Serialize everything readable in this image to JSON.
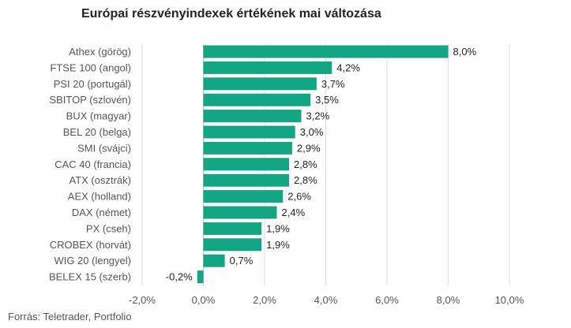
{
  "title": "Európai részvényindexek értékének mai változása",
  "source": "Forrás: Teletrader, Portfolio",
  "colors": {
    "bar": "#13a684",
    "grid": "#dcdcdc",
    "axis": "#bbbbbb"
  },
  "chart_data": {
    "type": "bar",
    "orientation": "horizontal",
    "title": "Európai részvényindexek értékének mai változása",
    "categories": [
      "Athex (görög)",
      "FTSE 100 (angol)",
      "PSI 20 (portugál)",
      "SBITOP (szlovén)",
      "BUX (magyar)",
      "BEL 20 (belga)",
      "SMI (svájci)",
      "CAC 40 (francia)",
      "ATX (osztrák)",
      "AEX (holland)",
      "DAX (német)",
      "PX (cseh)",
      "CROBEX (horvát)",
      "WIG 20 (lengyel)",
      "BELEX 15 (szerb)"
    ],
    "values": [
      8.0,
      4.2,
      3.7,
      3.5,
      3.2,
      3.0,
      2.9,
      2.8,
      2.8,
      2.6,
      2.4,
      1.9,
      1.9,
      0.7,
      -0.2
    ],
    "value_labels": [
      "8,0%",
      "4,2%",
      "3,7%",
      "3,5%",
      "3,2%",
      "3,0%",
      "2,9%",
      "2,8%",
      "2,8%",
      "2,6%",
      "2,4%",
      "1,9%",
      "1,9%",
      "0,7%",
      "-0,2%"
    ],
    "xlim": [
      -2,
      10
    ],
    "xticks": [
      -2,
      0,
      2,
      4,
      6,
      8,
      10
    ],
    "xtick_labels": [
      "-2,0%",
      "0,0%",
      "2,0%",
      "4,0%",
      "6,0%",
      "8,0%",
      "10,0%"
    ],
    "grid": true,
    "legend": false
  }
}
